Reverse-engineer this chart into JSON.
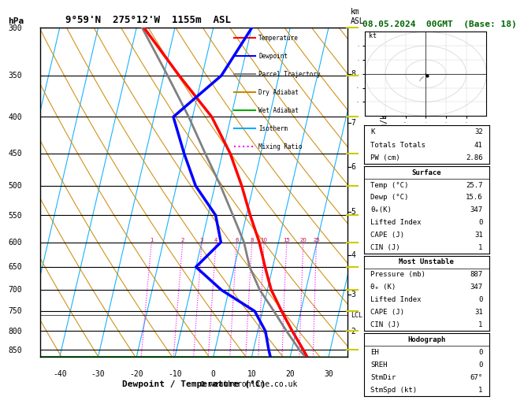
{
  "title_left": "9°59'N  275°12'W  1155m  ASL",
  "title_right": "08.05.2024  00GMT  (Base: 18)",
  "xlabel": "Dewpoint / Temperature (°C)",
  "ylabel_left": "hPa",
  "ylabel_right_km": "km\nASL",
  "ylabel_right_mixing": "Mixing Ratio (g/kg)",
  "pressure_levels": [
    300,
    350,
    400,
    450,
    500,
    550,
    600,
    650,
    700,
    750,
    800,
    850
  ],
  "xlim": [
    -45,
    35
  ],
  "ylim_log": [
    300,
    870
  ],
  "temp_profile": {
    "pressure": [
      887,
      850,
      800,
      750,
      700,
      650,
      600,
      550,
      500,
      450,
      400,
      350,
      300
    ],
    "temperature": [
      25.7,
      23.0,
      19.0,
      15.0,
      11.0,
      8.0,
      5.0,
      1.0,
      -3.0,
      -8.0,
      -15.0,
      -26.0,
      -38.0
    ],
    "color": "#ff0000",
    "linewidth": 2.5
  },
  "dewpoint_profile": {
    "pressure": [
      887,
      850,
      800,
      750,
      700,
      650,
      600,
      550,
      500,
      450,
      400,
      350,
      300
    ],
    "dewpoint": [
      15.6,
      14.0,
      12.0,
      8.0,
      -2.0,
      -10.0,
      -5.0,
      -8.0,
      -15.0,
      -20.0,
      -25.0,
      -15.0,
      -10.0
    ],
    "color": "#0000ff",
    "linewidth": 2.5
  },
  "parcel_trajectory": {
    "pressure": [
      887,
      850,
      800,
      750,
      700,
      650,
      600,
      550,
      500,
      450,
      400,
      350,
      300
    ],
    "temperature": [
      25.7,
      22.0,
      17.5,
      13.0,
      8.0,
      4.0,
      1.0,
      -3.5,
      -8.5,
      -14.5,
      -21.0,
      -29.0,
      -38.5
    ],
    "color": "#808080",
    "linewidth": 2.0
  },
  "lcl_pressure": 760,
  "lcl_label": "LCL",
  "skew_factor": 20,
  "dry_adiabats": {
    "color": "#cc8800",
    "linewidth": 0.8,
    "alpha": 0.9,
    "theta_values": [
      -40,
      -30,
      -20,
      -10,
      0,
      10,
      20,
      30,
      40,
      50,
      60,
      70,
      80,
      90,
      100,
      110,
      120,
      130
    ]
  },
  "wet_adiabats": {
    "color": "#00aa00",
    "linewidth": 0.8,
    "alpha": 0.9,
    "theta_w_values": [
      -15,
      -10,
      -5,
      0,
      5,
      10,
      15,
      20,
      25,
      30,
      35,
      40
    ]
  },
  "isotherms": {
    "color": "#00aaff",
    "linewidth": 0.8,
    "alpha": 0.9,
    "temp_values": [
      -60,
      -50,
      -40,
      -30,
      -20,
      -10,
      0,
      10,
      20,
      30,
      40
    ]
  },
  "mixing_ratios": {
    "color": "#ff00ff",
    "linewidth": 0.8,
    "linestyle": "dotted",
    "values": [
      1,
      2,
      3,
      4,
      6,
      8,
      10,
      15,
      20,
      25
    ],
    "label_pressure": 600
  },
  "legend_items": [
    {
      "label": "Temperature",
      "color": "#ff0000",
      "linestyle": "-"
    },
    {
      "label": "Dewpoint",
      "color": "#0000ff",
      "linestyle": "-"
    },
    {
      "label": "Parcel Trajectory",
      "color": "#808080",
      "linestyle": "-"
    },
    {
      "label": "Dry Adiabat",
      "color": "#cc8800",
      "linestyle": "-"
    },
    {
      "label": "Wet Adiabat",
      "color": "#00aa00",
      "linestyle": "-"
    },
    {
      "label": "Isotherm",
      "color": "#00aaff",
      "linestyle": "-"
    },
    {
      "label": "Mixing Ratio",
      "color": "#ff00ff",
      "linestyle": ":"
    }
  ],
  "background_color": "#ffffff",
  "plot_background": "#ffffff",
  "border_color": "#000000",
  "km_ticks": {
    "values": [
      2,
      3,
      4,
      5,
      6,
      7,
      8
    ],
    "pressures": [
      800,
      710,
      625,
      544,
      470,
      408,
      348
    ]
  },
  "right_panel": {
    "K": 32,
    "Totals_Totals": 41,
    "PW_cm": 2.86,
    "Surface_Temp": 25.7,
    "Surface_Dewp": 15.6,
    "Surface_theta_e": 347,
    "Surface_Lifted_Index": 0,
    "Surface_CAPE": 31,
    "Surface_CIN": 1,
    "MU_Pressure": 887,
    "MU_theta_e": 347,
    "MU_Lifted_Index": 0,
    "MU_CAPE": 31,
    "MU_CIN": 1,
    "Hodo_EH": 0,
    "Hodo_SREH": 0,
    "Hodo_StmDir": "67°",
    "Hodo_StmSpd_kt": 1
  },
  "credit": "© weatheronline.co.uk",
  "yellow_tick_pressures": [
    300,
    400,
    500,
    600,
    700,
    800
  ],
  "yellow_tick_color": "#cccc00",
  "left_yellow_tick_pressures": [
    350,
    450,
    550,
    650,
    750,
    850
  ],
  "left_yellow_tick_color": "#cccc00"
}
